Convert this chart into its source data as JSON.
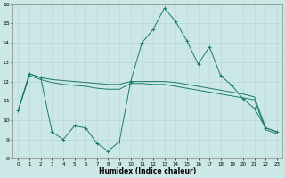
{
  "xlabel": "Humidex (Indice chaleur)",
  "x": [
    0,
    1,
    2,
    3,
    4,
    5,
    6,
    7,
    8,
    9,
    10,
    11,
    12,
    13,
    14,
    15,
    16,
    17,
    18,
    19,
    20,
    21,
    22,
    23
  ],
  "line1": [
    10.5,
    12.4,
    12.2,
    9.4,
    9.0,
    9.7,
    9.6,
    8.8,
    8.4,
    8.9,
    12.0,
    14.0,
    14.7,
    15.8,
    15.1,
    14.1,
    12.9,
    13.8,
    12.3,
    11.8,
    11.1,
    10.6,
    9.6,
    9.4
  ],
  "line2": [
    10.5,
    12.4,
    12.2,
    12.1,
    12.05,
    12.0,
    11.95,
    11.9,
    11.85,
    11.85,
    12.0,
    12.0,
    12.0,
    12.0,
    11.95,
    11.85,
    11.75,
    11.65,
    11.55,
    11.45,
    11.35,
    11.2,
    9.6,
    9.4
  ],
  "line3": [
    10.5,
    12.3,
    12.1,
    11.95,
    11.85,
    11.8,
    11.75,
    11.65,
    11.6,
    11.6,
    11.9,
    11.9,
    11.85,
    11.85,
    11.75,
    11.65,
    11.55,
    11.45,
    11.35,
    11.25,
    11.15,
    11.05,
    9.5,
    9.3
  ],
  "ylim": [
    8,
    16
  ],
  "xlim_min": -0.5,
  "xlim_max": 23.5,
  "yticks": [
    8,
    9,
    10,
    11,
    12,
    13,
    14,
    15,
    16
  ],
  "xticks": [
    0,
    1,
    2,
    3,
    4,
    5,
    6,
    7,
    8,
    9,
    10,
    11,
    12,
    13,
    14,
    15,
    16,
    17,
    18,
    19,
    20,
    21,
    22,
    23
  ],
  "line_color": "#1a7a6e",
  "bg_color": "#cce8e6",
  "grid_color": "#b8d8d6"
}
